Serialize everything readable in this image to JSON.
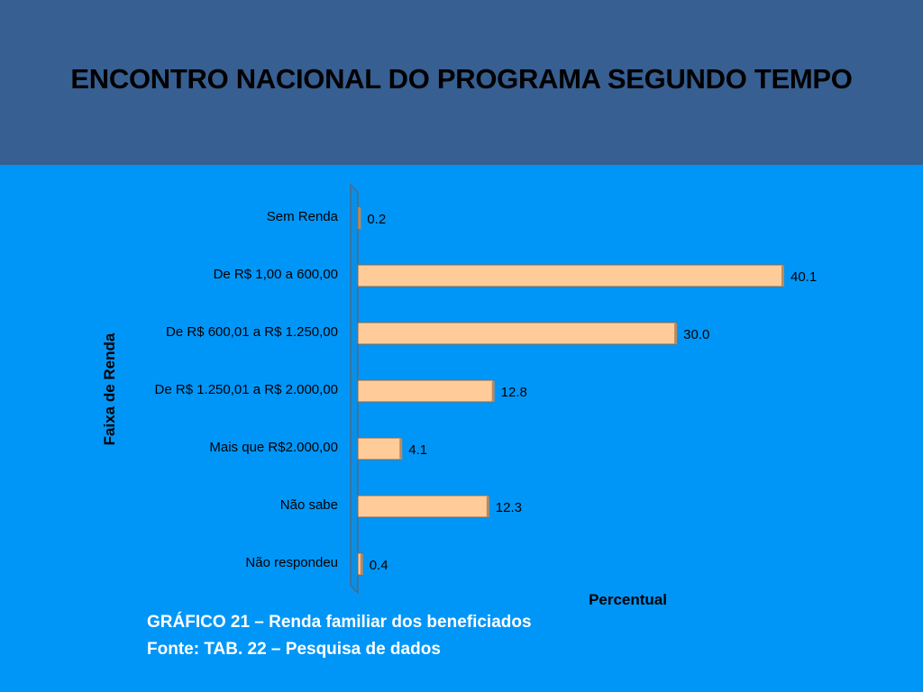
{
  "header": {
    "title": "ENCONTRO NACIONAL DO PROGRAMA SEGUNDO TEMPO"
  },
  "chart_data": {
    "type": "bar",
    "orientation": "horizontal",
    "title": "",
    "xlabel": "Percentual",
    "ylabel": "Faixa de Renda",
    "categories": [
      "Sem Renda",
      "De R$ 1,00 a 600,00",
      "De R$ 600,01 a R$ 1.250,00",
      "De R$ 1.250,01 a R$ 2.000,00",
      "Mais que R$2.000,00",
      "Não sabe",
      "Não respondeu"
    ],
    "values": [
      0.2,
      40.1,
      30.0,
      12.8,
      4.1,
      12.3,
      0.4
    ],
    "value_labels": [
      "0.2",
      "40.1",
      "30.0",
      "12.8",
      "4.1",
      "12.3",
      "0.4"
    ],
    "xlim": [
      0,
      40.1
    ],
    "grid": false,
    "legend": "none",
    "colors": {
      "bar_fill": "#ffcc99",
      "bar_edge": "#8a6a4a",
      "bar_side": "#b98a5e",
      "axis_wall": "#0a8ee6",
      "axis_line": "#4a6a88",
      "background": "#0096f8"
    }
  },
  "caption": {
    "line1": "GRÁFICO 21 – Renda familiar dos beneficiados",
    "line2": "Fonte: TAB. 22 – Pesquisa de dados"
  }
}
